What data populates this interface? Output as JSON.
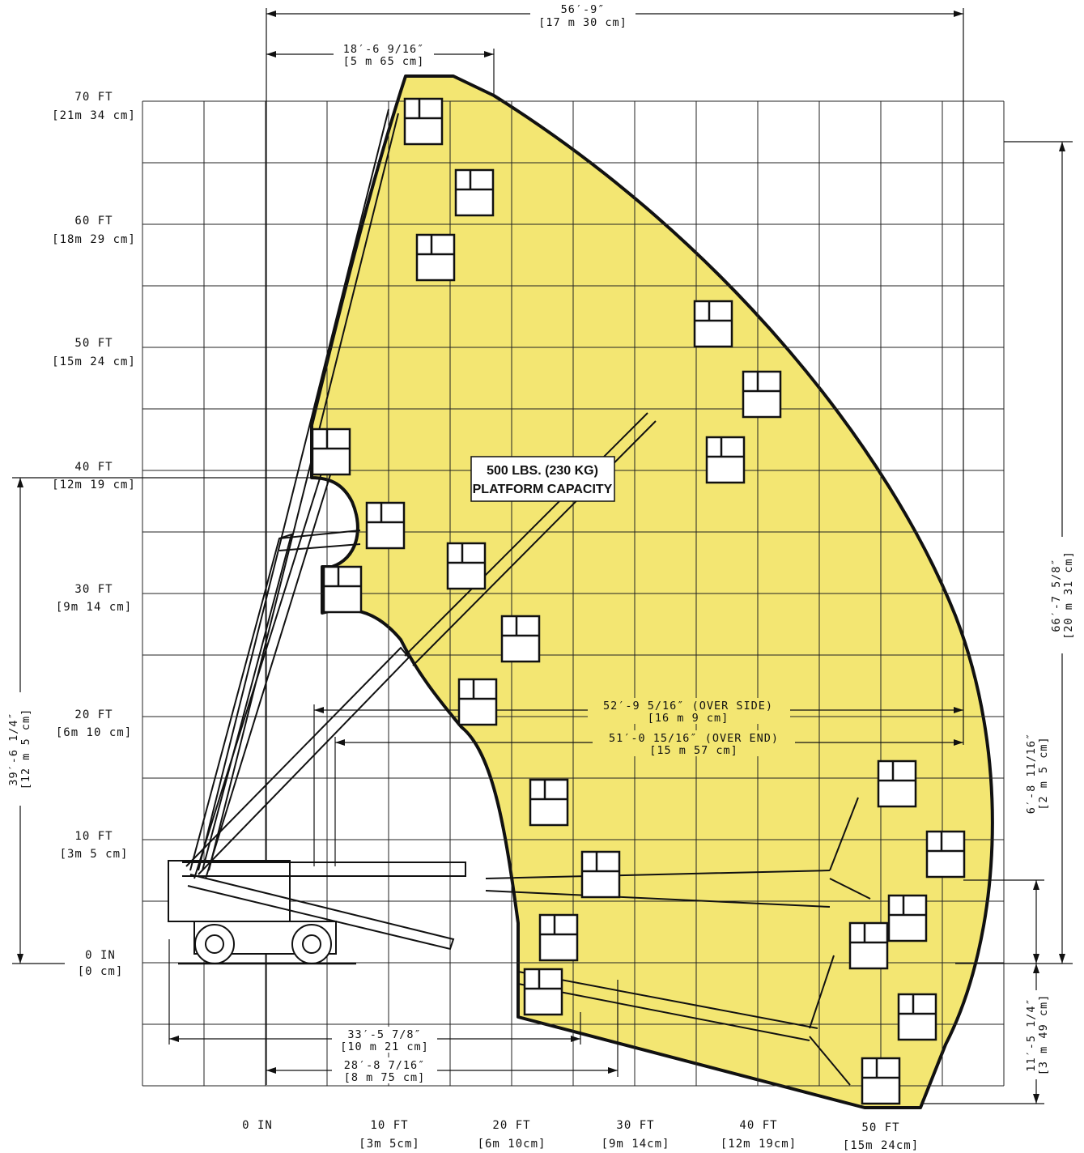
{
  "diagram": {
    "capacity": {
      "line1": "500 LBS. (230 KG)",
      "line2": "PLATFORM CAPACITY"
    },
    "vertical_labels": [
      {
        "ft": "70 FT",
        "m": "[21m 34 cm]"
      },
      {
        "ft": "60 FT",
        "m": "[18m 29 cm]"
      },
      {
        "ft": "50 FT",
        "m": "[15m 24 cm]"
      },
      {
        "ft": "40 FT",
        "m": "[12m 19 cm]"
      },
      {
        "ft": "30 FT",
        "m": "[9m 14 cm]"
      },
      {
        "ft": "20 FT",
        "m": "[6m 10 cm]"
      },
      {
        "ft": "10 FT",
        "m": "[3m 5 cm]"
      },
      {
        "ft": "0 IN",
        "m": "[0 cm]"
      }
    ],
    "horizontal_labels": [
      {
        "ft": "0 IN",
        "m": ""
      },
      {
        "ft": "10 FT",
        "m": "[3m 5cm]"
      },
      {
        "ft": "20 FT",
        "m": "[6m 10cm]"
      },
      {
        "ft": "30 FT",
        "m": "[9m 14cm]"
      },
      {
        "ft": "40 FT",
        "m": "[12m 19cm]"
      },
      {
        "ft": "50 FT",
        "m": "[15m 24cm]"
      }
    ],
    "dimensions": {
      "total_width": {
        "imperial": "56′-9″",
        "metric": "[17 m 30 cm]"
      },
      "up_over": {
        "imperial": "18′-6 9/16″",
        "metric": "[5 m 65 cm]"
      },
      "over_side": {
        "imperial": "52′-9 5/16″ (OVER SIDE)",
        "metric": "[16 m 9 cm]"
      },
      "over_end": {
        "imperial": "51′-0 15/16″ (OVER END)",
        "metric": "[15 m 57 cm]"
      },
      "below_a": {
        "imperial": "33′-5 7/8″",
        "metric": "[10 m 21 cm]"
      },
      "below_b": {
        "imperial": "28′-8 7/16″",
        "metric": "[8 m 75 cm]"
      },
      "left_height": {
        "imperial": "39′-6 1/4″",
        "metric": "[12 m 5 cm]"
      },
      "right_height": {
        "imperial": "66′-7 5/8″",
        "metric": "[20 m 31 cm]"
      },
      "right_mid": {
        "imperial": "6′-8 11/16″",
        "metric": "[2 m 5 cm]"
      },
      "right_low": {
        "imperial": "11′-5 1/4″",
        "metric": "[3 m 49 cm]"
      }
    },
    "colors": {
      "envelope_fill": "#f3e672",
      "outline": "#111111",
      "grid": "#222222"
    }
  }
}
